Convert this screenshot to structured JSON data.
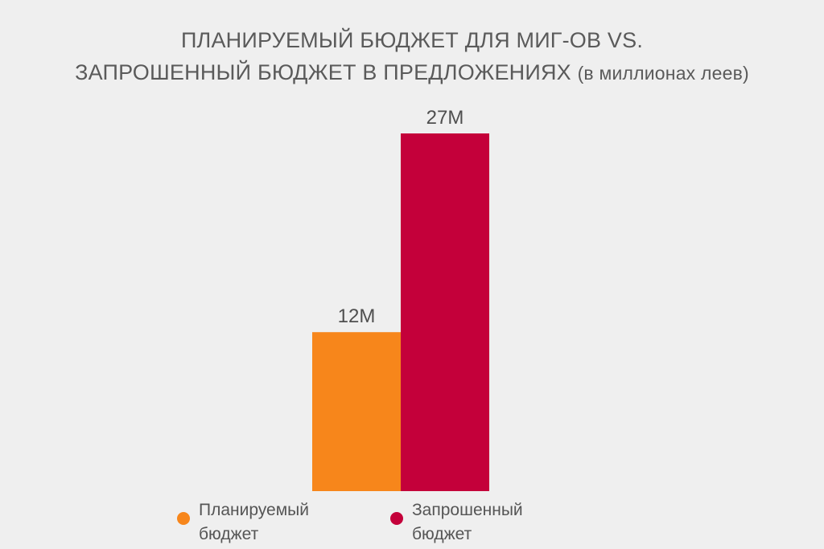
{
  "chart_data": {
    "type": "bar",
    "title_line1": "ПЛАНИРУЕМЫЙ БЮДЖЕТ ДЛЯ МИГ-ОВ VS.",
    "title_line2": "ЗАПРОШЕННЫЙ БЮДЖЕТ В ПРЕДЛОЖЕНИЯХ",
    "title_unit": "(в миллионах леев)",
    "categories": [
      "Планируемый бюджет",
      "Запрошенный бюджет"
    ],
    "values": [
      12,
      27
    ],
    "data_labels": [
      "12M",
      "27M"
    ],
    "colors": [
      "#f7861b",
      "#c4003a"
    ],
    "ylim": [
      0,
      27
    ],
    "grid": false,
    "legend_position": "bottom",
    "legend": [
      {
        "line1": "Планируемый",
        "line2": "бюджет",
        "color": "#f7861b"
      },
      {
        "line1": "Запрошенный",
        "line2": "бюджет",
        "color": "#c4003a"
      }
    ]
  }
}
